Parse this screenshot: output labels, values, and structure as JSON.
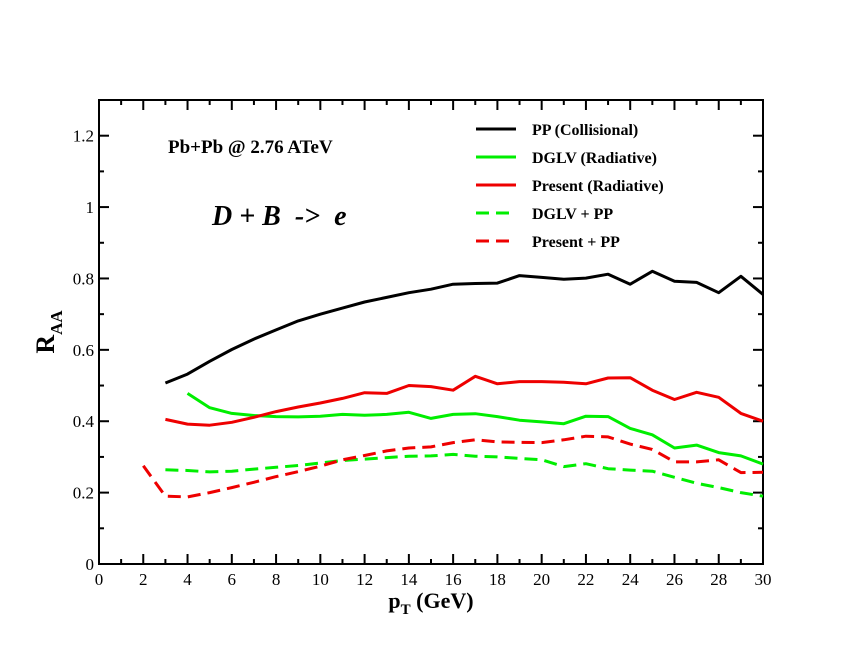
{
  "chart_data": {
    "type": "line",
    "xlabel_main": "p",
    "xlabel_sub": "T",
    "xlabel_rest": " (GeV)",
    "ylabel_main": "R",
    "ylabel_sub": "AA",
    "xlim": [
      0,
      30
    ],
    "ylim": [
      0,
      1.3
    ],
    "xticks": [
      0,
      2,
      4,
      6,
      8,
      10,
      12,
      14,
      16,
      18,
      20,
      22,
      24,
      26,
      28,
      30
    ],
    "yticks": [
      0,
      0.2,
      0.4,
      0.6,
      0.8,
      1.0,
      1.2
    ],
    "ytick_labels": [
      "0",
      "0.2",
      "0.4",
      "0.6",
      "0.8",
      "1",
      "1.2"
    ],
    "annotations": [
      "Pb+Pb @ 2.76 ATeV",
      "D + B  ->  e"
    ],
    "legend_position": "top-right",
    "series": [
      {
        "name": "PP (Collisional)",
        "color": "#000000",
        "dash": "solid",
        "x": [
          3,
          4,
          5,
          6,
          7,
          8,
          9,
          10,
          11,
          12,
          13,
          14,
          15,
          16,
          17,
          18,
          19,
          20,
          21,
          22,
          23,
          24,
          25,
          26,
          27,
          28,
          29,
          30
        ],
        "y": [
          0.507,
          0.532,
          0.568,
          0.601,
          0.63,
          0.656,
          0.681,
          0.7,
          0.717,
          0.734,
          0.747,
          0.76,
          0.77,
          0.784,
          0.786,
          0.787,
          0.808,
          0.803,
          0.798,
          0.801,
          0.812,
          0.784,
          0.82,
          0.792,
          0.789,
          0.76,
          0.806,
          0.755
        ]
      },
      {
        "name": "DGLV (Radiative)",
        "color": "#00ee00",
        "dash": "solid",
        "x": [
          4,
          5,
          6,
          7,
          8,
          9,
          10,
          11,
          12,
          13,
          14,
          15,
          16,
          17,
          18,
          19,
          20,
          21,
          22,
          23,
          24,
          25,
          26,
          27,
          28,
          29,
          30
        ],
        "y": [
          0.478,
          0.438,
          0.422,
          0.416,
          0.413,
          0.412,
          0.414,
          0.419,
          0.417,
          0.419,
          0.425,
          0.408,
          0.419,
          0.421,
          0.413,
          0.403,
          0.398,
          0.393,
          0.414,
          0.413,
          0.38,
          0.362,
          0.325,
          0.333,
          0.312,
          0.303,
          0.28
        ]
      },
      {
        "name": "Present (Radiative)",
        "color": "#ee0000",
        "dash": "solid",
        "x": [
          3,
          4,
          5,
          6,
          7,
          8,
          9,
          10,
          11,
          12,
          13,
          14,
          15,
          16,
          17,
          18,
          19,
          20,
          21,
          22,
          23,
          24,
          25,
          26,
          27,
          28,
          29,
          30
        ],
        "y": [
          0.405,
          0.392,
          0.389,
          0.397,
          0.411,
          0.427,
          0.44,
          0.451,
          0.464,
          0.48,
          0.478,
          0.5,
          0.497,
          0.487,
          0.526,
          0.505,
          0.511,
          0.511,
          0.509,
          0.505,
          0.521,
          0.522,
          0.487,
          0.461,
          0.481,
          0.467,
          0.422,
          0.4
        ]
      },
      {
        "name": "DGLV + PP",
        "color": "#00ee00",
        "dash": "dashed",
        "x": [
          3,
          4,
          5,
          6,
          7,
          8,
          9,
          10,
          11,
          12,
          13,
          14,
          15,
          16,
          17,
          18,
          19,
          20,
          21,
          22,
          23,
          24,
          25,
          26,
          27,
          28,
          29,
          30
        ],
        "y": [
          0.264,
          0.262,
          0.258,
          0.26,
          0.266,
          0.271,
          0.276,
          0.283,
          0.29,
          0.294,
          0.298,
          0.302,
          0.303,
          0.307,
          0.302,
          0.3,
          0.296,
          0.292,
          0.273,
          0.281,
          0.267,
          0.263,
          0.26,
          0.243,
          0.226,
          0.214,
          0.2,
          0.19
        ]
      },
      {
        "name": "Present + PP",
        "color": "#ee0000",
        "dash": "dashed",
        "x": [
          2,
          3,
          4,
          5,
          6,
          7,
          8,
          9,
          10,
          11,
          12,
          13,
          14,
          15,
          16,
          17,
          18,
          19,
          20,
          21,
          22,
          23,
          24,
          25,
          26,
          27,
          28,
          29,
          30
        ],
        "y": [
          0.275,
          0.19,
          0.188,
          0.2,
          0.214,
          0.229,
          0.245,
          0.259,
          0.274,
          0.292,
          0.304,
          0.317,
          0.325,
          0.328,
          0.34,
          0.348,
          0.342,
          0.341,
          0.34,
          0.348,
          0.358,
          0.356,
          0.336,
          0.321,
          0.286,
          0.286,
          0.292,
          0.256,
          0.257
        ]
      }
    ]
  }
}
